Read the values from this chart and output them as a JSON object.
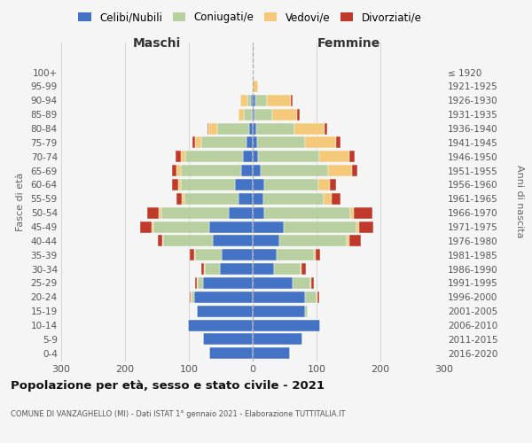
{
  "age_groups": [
    "0-4",
    "5-9",
    "10-14",
    "15-19",
    "20-24",
    "25-29",
    "30-34",
    "35-39",
    "40-44",
    "45-49",
    "50-54",
    "55-59",
    "60-64",
    "65-69",
    "70-74",
    "75-79",
    "80-84",
    "85-89",
    "90-94",
    "95-99",
    "100+"
  ],
  "birth_years": [
    "2016-2020",
    "2011-2015",
    "2006-2010",
    "2001-2005",
    "1996-2000",
    "1991-1995",
    "1986-1990",
    "1981-1985",
    "1976-1980",
    "1971-1975",
    "1966-1970",
    "1961-1965",
    "1956-1960",
    "1951-1955",
    "1946-1950",
    "1941-1945",
    "1936-1940",
    "1931-1935",
    "1926-1930",
    "1921-1925",
    "≤ 1920"
  ],
  "maschi": {
    "celibi": [
      68,
      78,
      102,
      88,
      92,
      78,
      52,
      48,
      62,
      68,
      38,
      22,
      28,
      18,
      15,
      10,
      5,
      2,
      3,
      0,
      0
    ],
    "coniugati": [
      0,
      0,
      0,
      0,
      4,
      8,
      23,
      42,
      78,
      88,
      105,
      85,
      85,
      95,
      90,
      70,
      50,
      12,
      5,
      0,
      0
    ],
    "vedovi": [
      0,
      0,
      0,
      0,
      1,
      2,
      2,
      2,
      2,
      2,
      4,
      4,
      4,
      7,
      7,
      10,
      14,
      8,
      12,
      1,
      0
    ],
    "divorziati": [
      0,
      0,
      0,
      0,
      2,
      2,
      3,
      7,
      7,
      18,
      18,
      8,
      9,
      7,
      9,
      5,
      2,
      0,
      0,
      0,
      0
    ]
  },
  "femmine": {
    "nubili": [
      58,
      78,
      105,
      82,
      82,
      62,
      33,
      38,
      42,
      48,
      18,
      16,
      18,
      13,
      9,
      7,
      5,
      3,
      4,
      0,
      0
    ],
    "coniugate": [
      0,
      0,
      0,
      4,
      18,
      28,
      42,
      58,
      105,
      115,
      135,
      95,
      85,
      105,
      95,
      75,
      60,
      28,
      18,
      0,
      0
    ],
    "vedove": [
      0,
      0,
      0,
      0,
      2,
      2,
      2,
      2,
      4,
      4,
      6,
      13,
      18,
      38,
      48,
      48,
      48,
      38,
      38,
      8,
      0
    ],
    "divorziate": [
      0,
      0,
      0,
      0,
      2,
      4,
      6,
      8,
      18,
      22,
      28,
      13,
      10,
      8,
      8,
      8,
      4,
      4,
      2,
      0,
      0
    ]
  },
  "colors": {
    "celibi_nubili": "#4472c4",
    "coniugati": "#b8cfa0",
    "vedovi": "#f5c97a",
    "divorziati": "#c0392b"
  },
  "xlim": 300,
  "title": "Popolazione per età, sesso e stato civile - 2021",
  "subtitle": "COMUNE DI VANZAGHELLO (MI) - Dati ISTAT 1° gennaio 2021 - Elaborazione TUTTITALIA.IT",
  "ylabel_left": "Fasce di età",
  "ylabel_right": "Anni di nascita",
  "xlabel_maschi": "Maschi",
  "xlabel_femmine": "Femmine",
  "legend_labels": [
    "Celibi/Nubili",
    "Coniugati/e",
    "Vedovi/e",
    "Divorziati/e"
  ],
  "bg_color": "#f5f5f5",
  "grid_color": "#d0d0d0"
}
